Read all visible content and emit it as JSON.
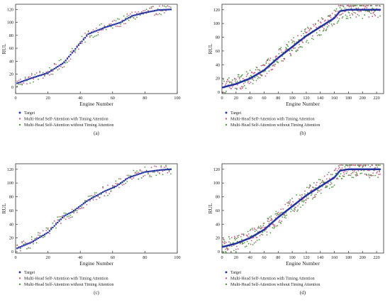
{
  "chart_data": [
    {
      "panel_label": "(a)",
      "type": "scatter",
      "xlabel": "Engine Number",
      "ylabel": "RUL",
      "xlim": [
        0,
        100
      ],
      "ylim": [
        -10,
        128
      ],
      "xticks": [
        0,
        20,
        40,
        60,
        80,
        100
      ],
      "yticks": [
        0,
        20,
        40,
        60,
        80,
        100,
        120
      ],
      "n_points": 96,
      "target_knots": [
        [
          1,
          6
        ],
        [
          10,
          14
        ],
        [
          20,
          22
        ],
        [
          30,
          38
        ],
        [
          38,
          62
        ],
        [
          45,
          82
        ],
        [
          55,
          92
        ],
        [
          65,
          100
        ],
        [
          72,
          110
        ],
        [
          80,
          115
        ],
        [
          88,
          119
        ],
        [
          96,
          120
        ]
      ],
      "series": [
        {
          "name": "Target",
          "color": "#1f2f9f",
          "marker": "square"
        },
        {
          "name": "Multi-Head Self-Attention with Timing Attention",
          "color": "#c85a8a",
          "marker": "dot"
        },
        {
          "name": "Multi-Head Self-Attention without Timing Attention",
          "color": "#4a9a3a",
          "marker": "dot"
        }
      ]
    },
    {
      "panel_label": "(b)",
      "type": "scatter",
      "xlabel": "Engine Number",
      "ylabel": "RUL",
      "xlim": [
        0,
        230
      ],
      "ylim": [
        -2,
        128
      ],
      "xticks": [
        0,
        20,
        40,
        60,
        80,
        100,
        120,
        140,
        160,
        180,
        200,
        220
      ],
      "yticks": [
        0,
        20,
        40,
        60,
        80,
        100,
        120
      ],
      "n_points": 225,
      "target_knots": [
        [
          1,
          7
        ],
        [
          20,
          12
        ],
        [
          40,
          20
        ],
        [
          60,
          32
        ],
        [
          80,
          50
        ],
        [
          100,
          66
        ],
        [
          120,
          82
        ],
        [
          140,
          95
        ],
        [
          160,
          108
        ],
        [
          168,
          118
        ],
        [
          180,
          120
        ],
        [
          225,
          120
        ]
      ],
      "series": [
        {
          "name": "Target",
          "color": "#1f2f9f",
          "marker": "square"
        },
        {
          "name": "Multi-Head Self-Attention with Timing Attention",
          "color": "#c85a8a",
          "marker": "dot"
        },
        {
          "name": "Multi-Head Self-Attention without Timing Attention",
          "color": "#4a9a3a",
          "marker": "dot"
        }
      ]
    },
    {
      "panel_label": "(c)",
      "type": "scatter",
      "xlabel": "Engine Number",
      "ylabel": "RUL",
      "xlim": [
        0,
        100
      ],
      "ylim": [
        -2,
        128
      ],
      "xticks": [
        0,
        20,
        40,
        60,
        80,
        100
      ],
      "yticks": [
        0,
        20,
        40,
        60,
        80,
        100,
        120
      ],
      "n_points": 96,
      "target_knots": [
        [
          1,
          5
        ],
        [
          10,
          14
        ],
        [
          20,
          28
        ],
        [
          30,
          52
        ],
        [
          35,
          58
        ],
        [
          45,
          75
        ],
        [
          55,
          88
        ],
        [
          62,
          95
        ],
        [
          70,
          108
        ],
        [
          80,
          116
        ],
        [
          90,
          119
        ],
        [
          96,
          120
        ]
      ],
      "series": [
        {
          "name": "Target",
          "color": "#1f2f9f",
          "marker": "square"
        },
        {
          "name": "Multi-Head Self-Attention with Timing Attention",
          "color": "#c85a8a",
          "marker": "dot"
        },
        {
          "name": "Multi-Head Self-Attention without Timing Attention",
          "color": "#4a9a3a",
          "marker": "dot"
        }
      ]
    },
    {
      "panel_label": "(d)",
      "type": "scatter",
      "xlabel": "Engine Number",
      "ylabel": "RUL",
      "xlim": [
        0,
        230
      ],
      "ylim": [
        -2,
        128
      ],
      "xticks": [
        0,
        20,
        40,
        60,
        80,
        100,
        120,
        140,
        160,
        180,
        200,
        220
      ],
      "yticks": [
        0,
        20,
        40,
        60,
        80,
        100,
        120
      ],
      "n_points": 225,
      "target_knots": [
        [
          1,
          7
        ],
        [
          20,
          12
        ],
        [
          40,
          20
        ],
        [
          60,
          32
        ],
        [
          80,
          50
        ],
        [
          100,
          66
        ],
        [
          120,
          82
        ],
        [
          140,
          95
        ],
        [
          160,
          108
        ],
        [
          168,
          118
        ],
        [
          180,
          120
        ],
        [
          225,
          120
        ]
      ],
      "series": [
        {
          "name": "Target",
          "color": "#1f2f9f",
          "marker": "square"
        },
        {
          "name": "Multi-Head Self-Attention with Timing Attention",
          "color": "#c85a8a",
          "marker": "dot"
        },
        {
          "name": "Multi-Head Self-Attention without Timing Attention",
          "color": "#4a9a3a",
          "marker": "dot"
        }
      ]
    }
  ]
}
